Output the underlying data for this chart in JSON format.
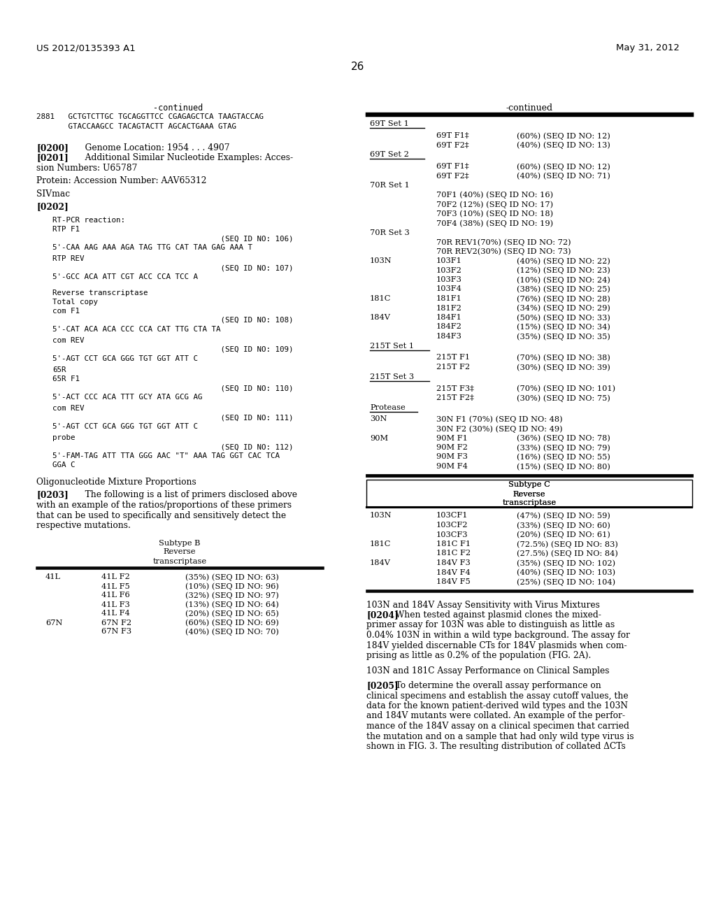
{
  "bg_color": "#ffffff",
  "header_left": "US 2012/0135393 A1",
  "header_right": "May 31, 2012",
  "page_number": "26"
}
